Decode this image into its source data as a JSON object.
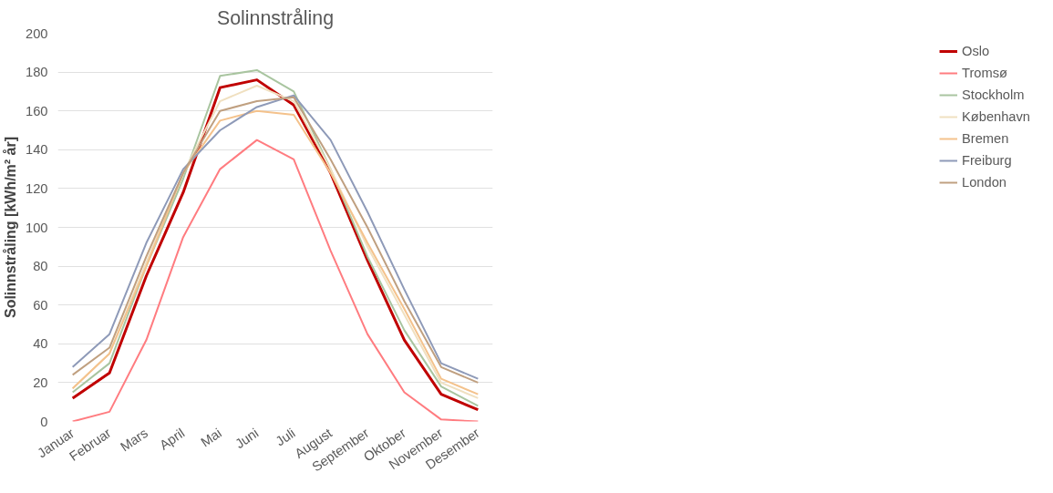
{
  "chart_data": {
    "type": "line",
    "title": "Solinnstråling",
    "ylabel": "Solinnstråling [kWh/m² år]",
    "categories": [
      "Januar",
      "Februar",
      "Mars",
      "April",
      "Mai",
      "Juni",
      "Juli",
      "August",
      "September",
      "Oktober",
      "November",
      "Desember"
    ],
    "series": [
      {
        "name": "Oslo",
        "color": "#c00000",
        "values": [
          12,
          25,
          75,
          118,
          172,
          176,
          163,
          128,
          83,
          42,
          14,
          6
        ]
      },
      {
        "name": "Tromsø",
        "color": "#ff7c80",
        "values": [
          0,
          5,
          42,
          95,
          130,
          145,
          135,
          88,
          45,
          15,
          1,
          0
        ]
      },
      {
        "name": "Stockholm",
        "color": "#a9c5a0",
        "values": [
          15,
          30,
          80,
          125,
          178,
          181,
          170,
          130,
          85,
          47,
          18,
          8
        ]
      },
      {
        "name": "København",
        "color": "#f0e0c0",
        "values": [
          17,
          35,
          82,
          128,
          165,
          173,
          165,
          130,
          90,
          55,
          20,
          12
        ]
      },
      {
        "name": "Bremen",
        "color": "#f4c28c",
        "values": [
          17,
          35,
          80,
          128,
          155,
          160,
          158,
          128,
          92,
          58,
          22,
          14
        ]
      },
      {
        "name": "Freiburg",
        "color": "#8e9ab8",
        "values": [
          28,
          45,
          92,
          130,
          150,
          162,
          168,
          145,
          108,
          68,
          30,
          22
        ]
      },
      {
        "name": "London",
        "color": "#c0a080",
        "values": [
          24,
          38,
          85,
          128,
          160,
          165,
          167,
          135,
          100,
          62,
          28,
          20
        ]
      }
    ],
    "ylim": [
      0,
      200
    ],
    "yticks": [
      0,
      20,
      40,
      60,
      80,
      100,
      120,
      140,
      160,
      180,
      200
    ],
    "grid": "y",
    "legend": "right",
    "marker": "none",
    "line_style": "solid"
  }
}
